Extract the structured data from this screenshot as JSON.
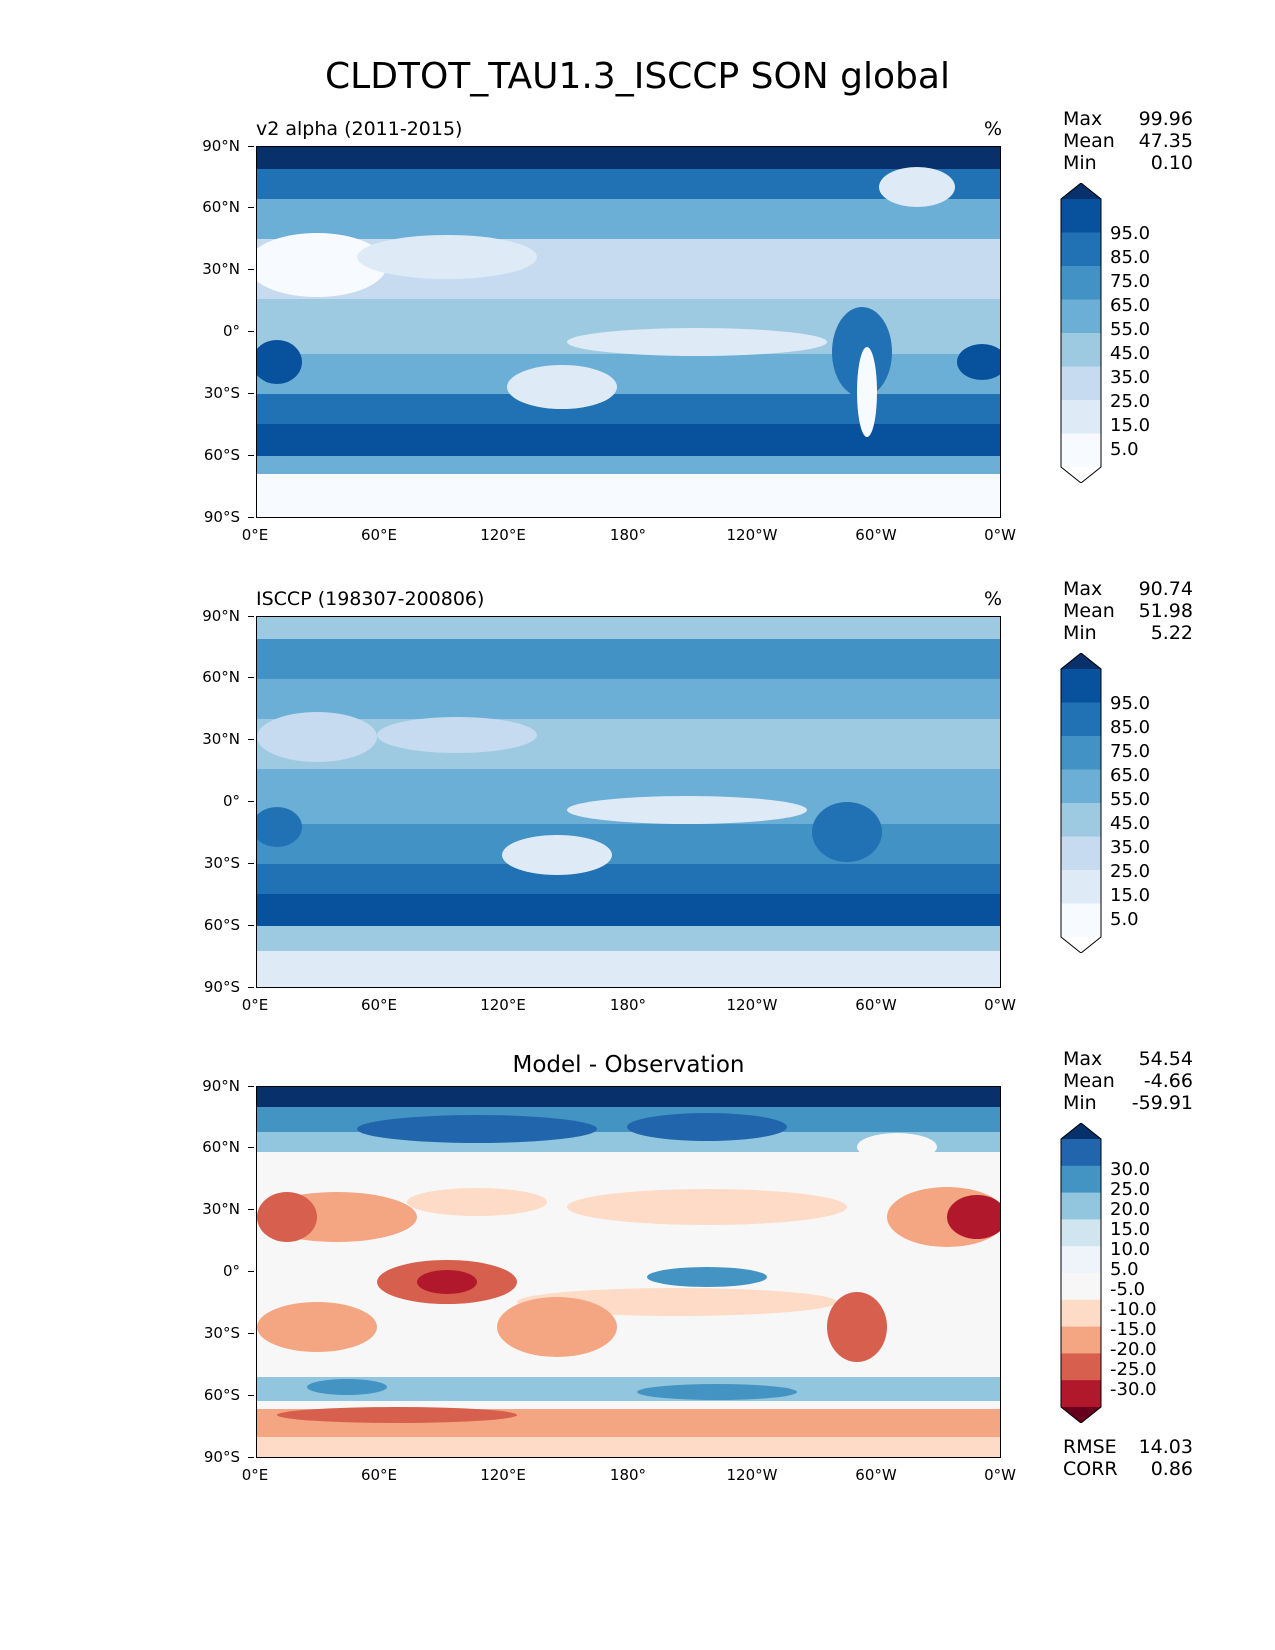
{
  "figure": {
    "title": "CLDTOT_TAU1.3_ISCCP SON global"
  },
  "axes": {
    "yticks": [
      "90°N",
      "60°N",
      "30°N",
      "0°",
      "30°S",
      "60°S",
      "90°S"
    ],
    "xticks": [
      "0°E",
      "60°E",
      "120°E",
      "180°",
      "120°W",
      "60°W",
      "0°W"
    ]
  },
  "panels": [
    {
      "id": "model",
      "title": "v2 alpha (2011-2015)",
      "units": "%",
      "stats": {
        "max_label": "Max",
        "max": "99.96",
        "mean_label": "Mean",
        "mean": "47.35",
        "min_label": "Min",
        "min": "0.10"
      },
      "colorbar": {
        "labels": [
          "95.0",
          "85.0",
          "75.0",
          "65.0",
          "55.0",
          "45.0",
          "35.0",
          "25.0",
          "15.0",
          "5.0"
        ],
        "colors": [
          "#08306b",
          "#08519c",
          "#2171b5",
          "#4292c6",
          "#6baed6",
          "#9ecae1",
          "#c6dbef",
          "#deebf7",
          "#f7fbff",
          "#ffffff"
        ]
      }
    },
    {
      "id": "obs",
      "title": "ISCCP (198307-200806)",
      "units": "%",
      "stats": {
        "max_label": "Max",
        "max": "90.74",
        "mean_label": "Mean",
        "mean": "51.98",
        "min_label": "Min",
        "min": "5.22"
      },
      "colorbar": {
        "labels": [
          "95.0",
          "85.0",
          "75.0",
          "65.0",
          "55.0",
          "45.0",
          "35.0",
          "25.0",
          "15.0",
          "5.0"
        ],
        "colors": [
          "#08306b",
          "#08519c",
          "#2171b5",
          "#4292c6",
          "#6baed6",
          "#9ecae1",
          "#c6dbef",
          "#deebf7",
          "#f7fbff",
          "#ffffff"
        ]
      }
    },
    {
      "id": "diff",
      "title": "Model - Observation",
      "units": "",
      "stats": {
        "max_label": "Max",
        "max": "54.54",
        "mean_label": "Mean",
        "mean": "-4.66",
        "min_label": "Min",
        "min": "-59.91"
      },
      "colorbar": {
        "labels": [
          "30.0",
          "25.0",
          "20.0",
          "15.0",
          "10.0",
          "5.0",
          "-5.0",
          "-10.0",
          "-15.0",
          "-20.0",
          "-25.0",
          "-30.0"
        ],
        "colors": [
          "#08306b",
          "#2166ac",
          "#4393c3",
          "#92c5de",
          "#d1e5f0",
          "#eef4f9",
          "#f7f7f7",
          "#fddbc7",
          "#f4a582",
          "#d6604d",
          "#b2182b",
          "#67001f"
        ]
      },
      "metrics": {
        "rmse_label": "RMSE",
        "rmse": "14.03",
        "corr_label": "CORR",
        "corr": "0.86"
      }
    }
  ]
}
